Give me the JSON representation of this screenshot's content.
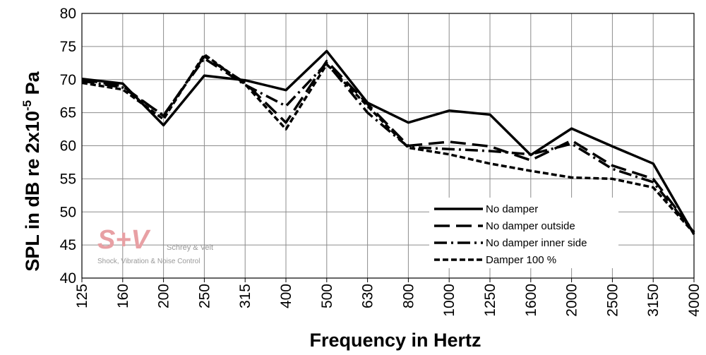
{
  "chart_data": {
    "type": "line",
    "categories": [
      "125",
      "160",
      "200",
      "250",
      "315",
      "400",
      "500",
      "630",
      "800",
      "1000",
      "1250",
      "1600",
      "2000",
      "2500",
      "3150",
      "4000"
    ],
    "xlabel": "Frequency in Hertz",
    "ylabel_main": "SPL in dB re 2x10",
    "ylabel_sup": "-5",
    "ylabel_unit": " Pa",
    "ylim": [
      40,
      80
    ],
    "yticks": [
      40,
      45,
      50,
      55,
      60,
      65,
      70,
      75,
      80
    ],
    "grid": true,
    "legend_position": "bottom-right",
    "series": [
      {
        "name": "No damper",
        "dash": "solid",
        "values": [
          70.1,
          69.4,
          63.1,
          70.6,
          69.9,
          68.4,
          74.3,
          66.5,
          63.5,
          65.3,
          64.7,
          58.6,
          62.6,
          59.9,
          57.3,
          46.6
        ]
      },
      {
        "name": "No damper outside",
        "dash": "longdash",
        "values": [
          70.0,
          69.0,
          64.5,
          73.5,
          69.5,
          63.5,
          72.8,
          66.3,
          60.0,
          60.6,
          59.9,
          57.8,
          60.8,
          57.0,
          55.0,
          47.0
        ]
      },
      {
        "name": "No damper inner side",
        "dash": "dashdot",
        "values": [
          69.8,
          68.8,
          64.6,
          73.2,
          69.2,
          66.0,
          72.5,
          65.0,
          59.8,
          59.5,
          59.2,
          58.7,
          60.3,
          56.5,
          54.5,
          46.9
        ]
      },
      {
        "name": "Damper 100 %",
        "dash": "shortdash",
        "values": [
          69.5,
          68.5,
          64.0,
          73.8,
          69.3,
          62.5,
          72.3,
          66.0,
          59.7,
          58.7,
          57.3,
          56.2,
          55.2,
          55.0,
          53.7,
          46.8
        ]
      }
    ]
  },
  "watermark": {
    "logo_text": "S+V",
    "company": "Schrey & Veit",
    "tagline": "Shock, Vibration & Noise Control",
    "color": "#e8a0a4"
  }
}
